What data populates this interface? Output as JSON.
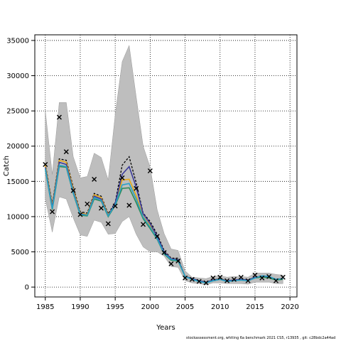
{
  "chart_data": {
    "type": "line",
    "xlabel": "Years",
    "ylabel": "Catch",
    "xlim": [
      1983.5,
      2021
    ],
    "ylim": [
      -1400,
      35800
    ],
    "xticks": [
      1985,
      1990,
      1995,
      2000,
      2005,
      2010,
      2015,
      2020
    ],
    "yticks": [
      0,
      5000,
      10000,
      15000,
      20000,
      25000,
      30000,
      35000
    ],
    "grid": true,
    "x": [
      1985,
      1986,
      1987,
      1988,
      1989,
      1990,
      1991,
      1992,
      1993,
      1994,
      1995,
      1996,
      1997,
      1998,
      1999,
      2000,
      2001,
      2002,
      2003,
      2004,
      2005,
      2006,
      2007,
      2008,
      2009,
      2010,
      2011,
      2012,
      2013,
      2014,
      2015,
      2016,
      2017,
      2018,
      2019
    ],
    "band": {
      "color": "#bebebe",
      "upper": [
        25000,
        16000,
        26200,
        26200,
        18500,
        15500,
        15700,
        19000,
        18400,
        15200,
        24500,
        32000,
        34300,
        27000,
        20000,
        17000,
        11000,
        7600,
        5400,
        5200,
        2300,
        1400,
        1300,
        1200,
        1500,
        1600,
        1400,
        1500,
        1500,
        1400,
        2000,
        2000,
        2000,
        1800,
        1700
      ],
      "lower": [
        12500,
        7800,
        12800,
        12500,
        9800,
        7400,
        7200,
        9500,
        9200,
        7500,
        7600,
        9300,
        10000,
        7500,
        5700,
        5000,
        5000,
        4400,
        2900,
        2800,
        900,
        600,
        500,
        300,
        600,
        600,
        500,
        500,
        500,
        400,
        700,
        700,
        700,
        500,
        500
      ]
    },
    "series": [
      {
        "color": "#000000",
        "dashed": true,
        "values": [
          17500,
          11800,
          18200,
          18000,
          14200,
          10700,
          10500,
          13300,
          12900,
          10400,
          12000,
          17300,
          18500,
          14800,
          10500,
          9300,
          7500,
          5200,
          4100,
          4100,
          1500,
          1200,
          900,
          700,
          1000,
          1200,
          900,
          1000,
          1100,
          1000,
          1400,
          1500,
          1400,
          1100,
          1200
        ]
      },
      {
        "color": "#e6a817",
        "values": [
          17300,
          11500,
          18000,
          17700,
          13900,
          10500,
          10300,
          13100,
          12700,
          10200,
          11800,
          15200,
          15300,
          13000,
          10000,
          8700,
          7000,
          5000,
          4000,
          3900,
          1500,
          1200,
          900,
          700,
          1000,
          1100,
          900,
          1000,
          1100,
          1000,
          1400,
          1500,
          1400,
          1100,
          1200
        ]
      },
      {
        "color": "#3a3a9a",
        "values": [
          17000,
          11300,
          17700,
          17400,
          13600,
          10400,
          10200,
          12900,
          12500,
          10100,
          11900,
          16000,
          17100,
          14200,
          10400,
          9000,
          7200,
          5000,
          4000,
          3900,
          1500,
          1200,
          900,
          700,
          1000,
          1100,
          900,
          1000,
          1100,
          1000,
          1400,
          1500,
          1400,
          1100,
          1200
        ]
      },
      {
        "color": "#2e8b57",
        "values": [
          16700,
          11000,
          17100,
          17000,
          13300,
          10200,
          10100,
          12500,
          12200,
          10000,
          11600,
          14000,
          14100,
          12000,
          9700,
          8300,
          6800,
          4700,
          3800,
          3700,
          1500,
          1100,
          800,
          600,
          900,
          1100,
          800,
          900,
          1000,
          900,
          1300,
          1400,
          1300,
          1000,
          1100
        ]
      },
      {
        "color": "#2aa0c8",
        "values": [
          16800,
          11100,
          17300,
          17100,
          13400,
          10300,
          10200,
          12700,
          12300,
          10100,
          11700,
          14500,
          14700,
          12500,
          9900,
          8500,
          6900,
          4800,
          3900,
          3800,
          1500,
          1100,
          800,
          600,
          900,
          1100,
          800,
          900,
          1000,
          900,
          1300,
          1600,
          1500,
          1100,
          1200
        ]
      }
    ],
    "observed": {
      "marker": "x",
      "values": [
        17400,
        10700,
        24100,
        19200,
        13700,
        10300,
        11800,
        15300,
        11200,
        9000,
        11500,
        15500,
        11600,
        14000,
        8900,
        16500,
        7200,
        4900,
        3300,
        3700,
        1300,
        1100,
        800,
        600,
        1300,
        1400,
        900,
        1100,
        1400,
        900,
        1700,
        1300,
        1500,
        900,
        1400
      ]
    },
    "footer": "stockassessment.org,  whiting  6a  benchmark  2021  CS5,  r13935  ,  git:  c28bdc2a44ad"
  }
}
